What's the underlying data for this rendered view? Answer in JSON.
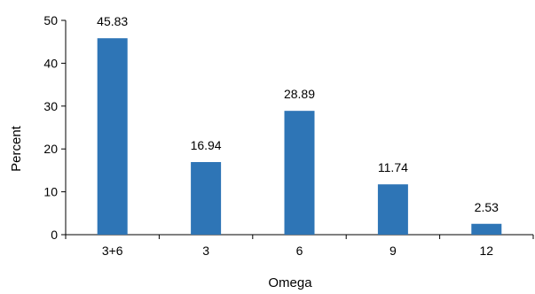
{
  "chart_data": {
    "type": "bar",
    "categories": [
      "3+6",
      "3",
      "6",
      "9",
      "12"
    ],
    "values": [
      45.83,
      16.94,
      28.89,
      11.74,
      2.53
    ],
    "data_labels": [
      "45.83",
      "16.94",
      "28.89",
      "11.74",
      "2.53"
    ],
    "title": "",
    "xlabel": "Omega",
    "ylabel": "Percent",
    "ylim": [
      0,
      50
    ],
    "yticks": [
      0,
      10,
      20,
      30,
      40,
      50
    ],
    "grid": false,
    "legend": "none",
    "bar_color": "#2E75B6"
  }
}
